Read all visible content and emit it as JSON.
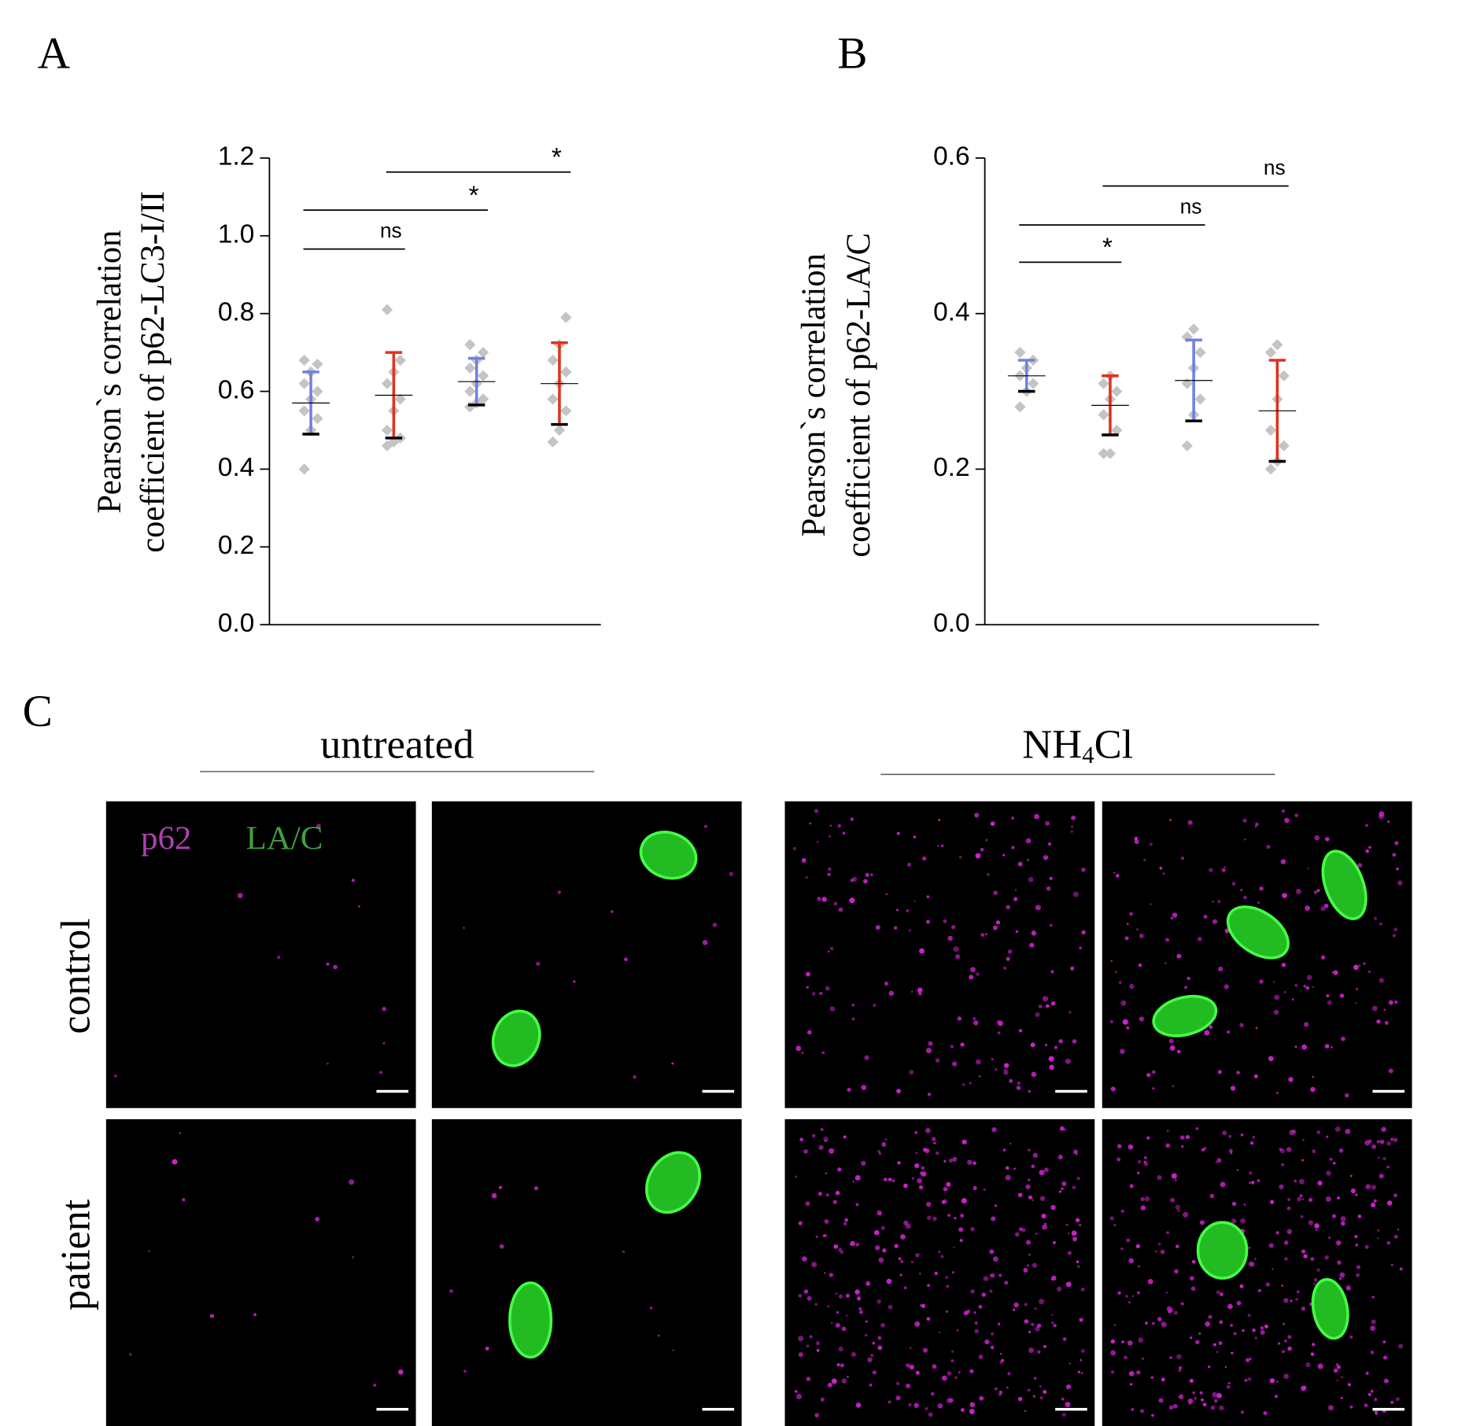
{
  "chart_data": [
    {
      "type": "dot_errorbar",
      "label": "A",
      "ylabel": [
        "Pearson`s correlation",
        "coefficient of p62-LC3-I/II"
      ],
      "ylim": [
        0,
        1.2
      ],
      "yticks": [
        {
          "value": 0,
          "label": "0.0"
        },
        0.2,
        0.4,
        0.6,
        0.8,
        {
          "value": 1,
          "label": "1.0"
        },
        1.2
      ],
      "groups": [
        {
          "color": "#6f82e0",
          "mean": 0.57,
          "sd": 0.08,
          "points": [
            0.4,
            0.5,
            0.53,
            0.55,
            0.58,
            0.6,
            0.62,
            0.65,
            0.67,
            0.68
          ]
        },
        {
          "color": "#e0321f",
          "mean": 0.59,
          "sd": 0.11,
          "points": [
            0.46,
            0.47,
            0.48,
            0.5,
            0.55,
            0.58,
            0.62,
            0.65,
            0.68,
            0.81
          ]
        },
        {
          "color": "#6f82e0",
          "mean": 0.625,
          "sd": 0.06,
          "points": [
            0.56,
            0.57,
            0.58,
            0.6,
            0.62,
            0.64,
            0.66,
            0.68,
            0.7,
            0.72
          ]
        },
        {
          "color": "#e0321f",
          "mean": 0.62,
          "sd": 0.105,
          "points": [
            0.47,
            0.5,
            0.55,
            0.58,
            0.62,
            0.65,
            0.68,
            0.72,
            0.79
          ]
        }
      ],
      "significance": [
        {
          "from": 0,
          "to": 1,
          "y": 0.966,
          "label": "ns"
        },
        {
          "from": 0,
          "to": 2,
          "y": 1.066,
          "label": "*"
        },
        {
          "from": 1,
          "to": 3,
          "y": 1.164,
          "label": "*"
        }
      ]
    },
    {
      "type": "dot_errorbar",
      "label": "B",
      "ylabel": [
        "Pearson`s correlation",
        "coefficient of p62-LA/C"
      ],
      "ylim": [
        0,
        0.6
      ],
      "yticks": [
        {
          "value": 0,
          "label": "0.0"
        },
        0.2,
        0.4,
        0.6
      ],
      "groups": [
        {
          "color": "#6f82e0",
          "mean": 0.32,
          "sd": 0.02,
          "points": [
            0.28,
            0.3,
            0.31,
            0.32,
            0.33,
            0.34,
            0.35
          ]
        },
        {
          "color": "#e0321f",
          "mean": 0.282,
          "sd": 0.038,
          "points": [
            0.22,
            0.22,
            0.25,
            0.27,
            0.29,
            0.3,
            0.31,
            0.32
          ]
        },
        {
          "color": "#6f82e0",
          "mean": 0.314,
          "sd": 0.052,
          "points": [
            0.23,
            0.27,
            0.29,
            0.31,
            0.33,
            0.35,
            0.37,
            0.38
          ]
        },
        {
          "color": "#e0321f",
          "mean": 0.275,
          "sd": 0.065,
          "points": [
            0.2,
            0.21,
            0.23,
            0.25,
            0.29,
            0.32,
            0.35,
            0.36
          ]
        }
      ],
      "significance": [
        {
          "from": 0,
          "to": 1,
          "y": 0.466,
          "label": "*"
        },
        {
          "from": 0,
          "to": 2,
          "y": 0.514,
          "label": "ns"
        },
        {
          "from": 1,
          "to": 3,
          "y": 0.564,
          "label": "ns"
        }
      ]
    }
  ],
  "panel_c": {
    "label": "C",
    "conditions": [
      {
        "parts": [
          "untreated"
        ]
      },
      {
        "parts": [
          "NH",
          "4",
          "Cl"
        ]
      }
    ],
    "rows": [
      "control",
      "patient"
    ],
    "legend": [
      {
        "text": "p62",
        "color": "#b040b0"
      },
      {
        "text": "LA/C",
        "color": "#40a040"
      }
    ]
  }
}
